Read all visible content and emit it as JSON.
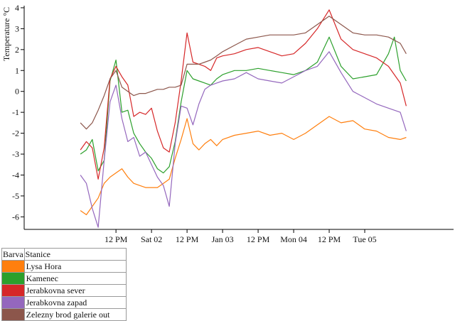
{
  "chart_data": {
    "type": "line",
    "ylabel": "Temperature °C",
    "xlabel": "",
    "ylim": [
      -6.6,
      4.1
    ],
    "y_ticks": [
      "-6",
      "-5",
      "-4",
      "-3",
      "-2",
      "-1",
      "0",
      "1",
      "2",
      "3",
      "4"
    ],
    "x_range_hours": [
      -19,
      126
    ],
    "x_ticks": [
      {
        "h": 12,
        "label": "12 PM"
      },
      {
        "h": 24,
        "label": "Sat 02"
      },
      {
        "h": 36,
        "label": "12 PM"
      },
      {
        "h": 48,
        "label": "Jan 03"
      },
      {
        "h": 60,
        "label": "12 PM"
      },
      {
        "h": 72,
        "label": "Mon 04"
      },
      {
        "h": 84,
        "label": "12 PM"
      },
      {
        "h": 96,
        "label": "Tue 05"
      }
    ],
    "grid": false,
    "series": [
      {
        "name": "Lysa Hora",
        "color": "#ff7f0e",
        "x": [
          0,
          2,
          4,
          6,
          8,
          10,
          12,
          14,
          16,
          18,
          20,
          22,
          24,
          26,
          28,
          30,
          32,
          34,
          36,
          38,
          40,
          42,
          44,
          46,
          48,
          52,
          56,
          60,
          64,
          68,
          72,
          76,
          80,
          84,
          88,
          92,
          96,
          100,
          104,
          108,
          110
        ],
        "values": [
          -5.7,
          -5.9,
          -5.5,
          -5.1,
          -4.4,
          -4.1,
          -3.9,
          -3.7,
          -4.1,
          -4.4,
          -4.5,
          -4.6,
          -4.6,
          -4.6,
          -4.4,
          -4.2,
          -3.2,
          -2.3,
          -1.3,
          -2.5,
          -2.8,
          -2.5,
          -2.3,
          -2.6,
          -2.3,
          -2.1,
          -2.0,
          -1.9,
          -2.1,
          -2.0,
          -2.3,
          -2.0,
          -1.6,
          -1.2,
          -1.5,
          -1.4,
          -1.8,
          -1.9,
          -2.2,
          -2.3,
          -2.2
        ]
      },
      {
        "name": "Kamenec",
        "color": "#2ca02c",
        "x": [
          0,
          2,
          4,
          6,
          8,
          10,
          12,
          14,
          16,
          18,
          20,
          22,
          24,
          26,
          28,
          30,
          32,
          34,
          36,
          38,
          40,
          42,
          44,
          46,
          48,
          52,
          56,
          60,
          64,
          68,
          72,
          76,
          80,
          84,
          88,
          92,
          96,
          100,
          104,
          106,
          108,
          110
        ],
        "values": [
          -3.0,
          -2.8,
          -2.3,
          -3.8,
          -3.3,
          0.5,
          1.5,
          -1.0,
          -0.9,
          -2.0,
          -2.5,
          -2.9,
          -3.2,
          -3.7,
          -3.9,
          -3.6,
          -2.4,
          -0.5,
          1.0,
          0.6,
          0.5,
          0.4,
          0.3,
          0.6,
          0.8,
          1.0,
          1.0,
          1.1,
          1.0,
          0.9,
          0.8,
          1.0,
          1.4,
          2.6,
          1.2,
          0.6,
          0.7,
          0.8,
          1.8,
          2.6,
          1.0,
          0.5
        ]
      },
      {
        "name": "Jerabkovna sever",
        "color": "#d62728",
        "x": [
          0,
          2,
          4,
          6,
          8,
          10,
          12,
          14,
          16,
          18,
          20,
          22,
          24,
          26,
          28,
          30,
          32,
          34,
          36,
          38,
          40,
          42,
          44,
          46,
          48,
          52,
          56,
          60,
          64,
          68,
          72,
          76,
          80,
          84,
          88,
          92,
          96,
          100,
          104,
          108,
          110
        ],
        "values": [
          -2.8,
          -2.4,
          -2.7,
          -4.2,
          -2.7,
          0.6,
          1.2,
          0.7,
          0.3,
          -1.2,
          -1.0,
          -1.1,
          -0.8,
          -1.9,
          -2.7,
          -2.9,
          -1.5,
          0.5,
          2.8,
          1.4,
          1.3,
          1.2,
          1.0,
          1.6,
          1.7,
          1.8,
          2.0,
          2.1,
          1.9,
          1.7,
          1.8,
          2.3,
          3.0,
          3.9,
          2.5,
          2.0,
          1.8,
          1.6,
          1.2,
          0.4,
          -0.7
        ]
      },
      {
        "name": "Jerabkovna zapad",
        "color": "#9467bd",
        "x": [
          0,
          2,
          4,
          6,
          8,
          10,
          12,
          14,
          16,
          18,
          20,
          22,
          24,
          26,
          28,
          30,
          32,
          34,
          36,
          38,
          40,
          42,
          44,
          46,
          48,
          52,
          56,
          60,
          64,
          68,
          72,
          76,
          80,
          84,
          88,
          92,
          96,
          100,
          104,
          108,
          110
        ],
        "values": [
          -4.0,
          -4.4,
          -5.6,
          -6.5,
          -3.3,
          -0.5,
          0.3,
          -1.3,
          -2.4,
          -2.2,
          -3.1,
          -2.9,
          -3.5,
          -4.1,
          -4.5,
          -5.5,
          -2.5,
          -0.7,
          -0.8,
          -1.6,
          -0.6,
          0.1,
          0.3,
          0.4,
          0.5,
          0.6,
          0.9,
          0.6,
          0.5,
          0.4,
          0.7,
          1.0,
          1.2,
          1.9,
          0.9,
          0.0,
          -0.3,
          -0.6,
          -0.8,
          -1.0,
          -1.9
        ]
      },
      {
        "name": "Zelezny brod galerie out",
        "color": "#8c564b",
        "x": [
          0,
          2,
          4,
          6,
          8,
          10,
          12,
          14,
          16,
          18,
          20,
          22,
          24,
          26,
          28,
          30,
          32,
          34,
          36,
          38,
          40,
          42,
          44,
          46,
          48,
          52,
          56,
          60,
          64,
          68,
          72,
          76,
          80,
          84,
          88,
          92,
          96,
          100,
          104,
          108,
          110
        ],
        "values": [
          -1.5,
          -1.8,
          -1.5,
          -0.9,
          -0.2,
          0.6,
          1.0,
          0.2,
          0.0,
          -0.2,
          -0.1,
          -0.1,
          0.0,
          0.1,
          0.1,
          0.2,
          0.2,
          0.3,
          1.3,
          1.3,
          1.3,
          1.4,
          1.5,
          1.7,
          1.9,
          2.2,
          2.5,
          2.6,
          2.7,
          2.7,
          2.7,
          2.8,
          3.2,
          3.6,
          3.2,
          2.8,
          2.7,
          2.7,
          2.6,
          2.3,
          1.8
        ]
      }
    ]
  },
  "legend": {
    "header_color": "Barva",
    "header_station": "Stanice"
  }
}
